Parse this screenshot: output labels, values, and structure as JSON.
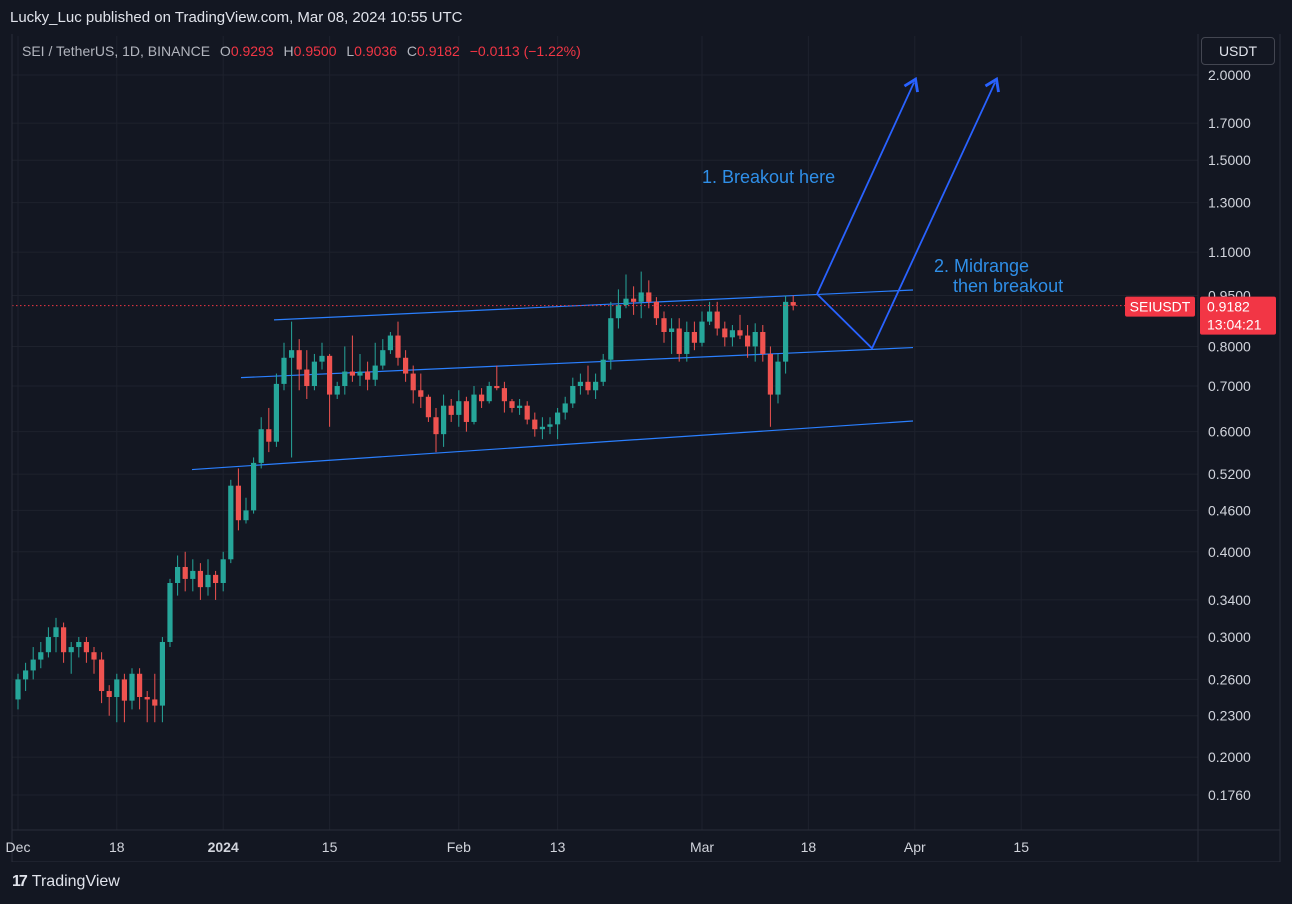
{
  "header": {
    "publisher_line": "Lucky_Luc published on TradingView.com, Mar 08, 2024 10:55 UTC"
  },
  "legend": {
    "symbol": "SEI / TetherUS, 1D, BINANCE",
    "open_label": "O",
    "open": "0.9293",
    "high_label": "H",
    "high": "0.9500",
    "low_label": "L",
    "low": "0.9036",
    "close_label": "C",
    "close": "0.9182",
    "change": "−0.0113 (−1.22%)"
  },
  "currency_button": "USDT",
  "footer": {
    "brand": "TradingView",
    "brand_mark": "17"
  },
  "colors": {
    "up": "#26a69a",
    "down": "#ef5350",
    "channel": "#2a7fff",
    "arrows": "#2962ff",
    "annotation_text": "#2f8fe8",
    "price_tag": "#f23645"
  },
  "chart_data": {
    "type": "candlestick",
    "scale": "log",
    "grid": true,
    "y_ticks": [
      "2.0000",
      "1.7000",
      "1.5000",
      "1.3000",
      "1.1000",
      "0.9500",
      "0.8000",
      "0.7000",
      "0.6000",
      "0.5200",
      "0.4600",
      "0.4000",
      "0.3400",
      "0.3000",
      "0.2600",
      "0.2300",
      "0.2000",
      "0.1760"
    ],
    "x_ticks": [
      "Dec",
      "18",
      "2024",
      "15",
      "Feb",
      "13",
      "Mar",
      "18",
      "Apr",
      "15"
    ],
    "start_date": "2023-12-05",
    "x_tick_days": [
      0,
      13,
      27,
      41,
      58,
      71,
      90,
      104,
      118,
      132
    ],
    "price_tag": {
      "symbol": "SEIUSDT",
      "price": "0.9182",
      "countdown": "13:04:21"
    },
    "annotations": [
      "1. Breakout here",
      "2. Midrange",
      "then breakout"
    ],
    "candles": [
      [
        0.243,
        0.265,
        0.235,
        0.26
      ],
      [
        0.26,
        0.275,
        0.25,
        0.268
      ],
      [
        0.268,
        0.29,
        0.26,
        0.278
      ],
      [
        0.278,
        0.295,
        0.27,
        0.285
      ],
      [
        0.285,
        0.31,
        0.28,
        0.3
      ],
      [
        0.3,
        0.32,
        0.285,
        0.31
      ],
      [
        0.31,
        0.315,
        0.275,
        0.285
      ],
      [
        0.285,
        0.295,
        0.265,
        0.29
      ],
      [
        0.29,
        0.3,
        0.28,
        0.295
      ],
      [
        0.295,
        0.3,
        0.275,
        0.285
      ],
      [
        0.285,
        0.29,
        0.265,
        0.278
      ],
      [
        0.278,
        0.285,
        0.24,
        0.25
      ],
      [
        0.25,
        0.255,
        0.23,
        0.245
      ],
      [
        0.245,
        0.265,
        0.225,
        0.26
      ],
      [
        0.26,
        0.265,
        0.225,
        0.242
      ],
      [
        0.242,
        0.27,
        0.235,
        0.265
      ],
      [
        0.265,
        0.27,
        0.235,
        0.245
      ],
      [
        0.245,
        0.25,
        0.225,
        0.243
      ],
      [
        0.243,
        0.265,
        0.225,
        0.238
      ],
      [
        0.238,
        0.3,
        0.225,
        0.295
      ],
      [
        0.295,
        0.365,
        0.29,
        0.36
      ],
      [
        0.36,
        0.395,
        0.345,
        0.38
      ],
      [
        0.38,
        0.4,
        0.35,
        0.365
      ],
      [
        0.365,
        0.39,
        0.35,
        0.375
      ],
      [
        0.375,
        0.385,
        0.34,
        0.355
      ],
      [
        0.355,
        0.39,
        0.345,
        0.37
      ],
      [
        0.37,
        0.375,
        0.34,
        0.36
      ],
      [
        0.36,
        0.4,
        0.35,
        0.39
      ],
      [
        0.39,
        0.51,
        0.385,
        0.5
      ],
      [
        0.5,
        0.53,
        0.43,
        0.445
      ],
      [
        0.445,
        0.48,
        0.44,
        0.46
      ],
      [
        0.46,
        0.55,
        0.455,
        0.54
      ],
      [
        0.54,
        0.63,
        0.53,
        0.605
      ],
      [
        0.605,
        0.65,
        0.56,
        0.58
      ],
      [
        0.58,
        0.73,
        0.57,
        0.705
      ],
      [
        0.705,
        0.81,
        0.69,
        0.77
      ],
      [
        0.77,
        0.87,
        0.55,
        0.79
      ],
      [
        0.79,
        0.82,
        0.69,
        0.74
      ],
      [
        0.74,
        0.79,
        0.67,
        0.7
      ],
      [
        0.7,
        0.78,
        0.69,
        0.76
      ],
      [
        0.76,
        0.81,
        0.74,
        0.775
      ],
      [
        0.775,
        0.78,
        0.61,
        0.68
      ],
      [
        0.68,
        0.71,
        0.67,
        0.7
      ],
      [
        0.7,
        0.8,
        0.68,
        0.735
      ],
      [
        0.735,
        0.83,
        0.71,
        0.725
      ],
      [
        0.725,
        0.78,
        0.7,
        0.735
      ],
      [
        0.735,
        0.76,
        0.69,
        0.715
      ],
      [
        0.715,
        0.81,
        0.7,
        0.75
      ],
      [
        0.75,
        0.82,
        0.74,
        0.79
      ],
      [
        0.79,
        0.84,
        0.78,
        0.83
      ],
      [
        0.83,
        0.87,
        0.75,
        0.77
      ],
      [
        0.77,
        0.79,
        0.71,
        0.73
      ],
      [
        0.73,
        0.75,
        0.66,
        0.69
      ],
      [
        0.69,
        0.73,
        0.65,
        0.675
      ],
      [
        0.675,
        0.68,
        0.62,
        0.63
      ],
      [
        0.63,
        0.65,
        0.56,
        0.595
      ],
      [
        0.595,
        0.68,
        0.57,
        0.655
      ],
      [
        0.655,
        0.67,
        0.62,
        0.635
      ],
      [
        0.635,
        0.69,
        0.61,
        0.665
      ],
      [
        0.665,
        0.675,
        0.6,
        0.62
      ],
      [
        0.62,
        0.7,
        0.615,
        0.68
      ],
      [
        0.68,
        0.695,
        0.65,
        0.665
      ],
      [
        0.665,
        0.71,
        0.66,
        0.7
      ],
      [
        0.7,
        0.75,
        0.69,
        0.695
      ],
      [
        0.695,
        0.71,
        0.64,
        0.665
      ],
      [
        0.665,
        0.67,
        0.64,
        0.65
      ],
      [
        0.65,
        0.67,
        0.635,
        0.655
      ],
      [
        0.655,
        0.665,
        0.615,
        0.625
      ],
      [
        0.625,
        0.64,
        0.59,
        0.605
      ],
      [
        0.605,
        0.63,
        0.585,
        0.61
      ],
      [
        0.61,
        0.63,
        0.595,
        0.615
      ],
      [
        0.615,
        0.65,
        0.585,
        0.64
      ],
      [
        0.64,
        0.675,
        0.625,
        0.66
      ],
      [
        0.66,
        0.72,
        0.65,
        0.7
      ],
      [
        0.7,
        0.73,
        0.68,
        0.71
      ],
      [
        0.71,
        0.75,
        0.68,
        0.69
      ],
      [
        0.69,
        0.73,
        0.67,
        0.71
      ],
      [
        0.71,
        0.78,
        0.7,
        0.765
      ],
      [
        0.765,
        0.93,
        0.74,
        0.88
      ],
      [
        0.88,
        0.97,
        0.85,
        0.92
      ],
      [
        0.92,
        1.02,
        0.91,
        0.94
      ],
      [
        0.94,
        0.98,
        0.89,
        0.93
      ],
      [
        0.93,
        1.03,
        0.88,
        0.96
      ],
      [
        0.96,
        1.0,
        0.91,
        0.93
      ],
      [
        0.93,
        0.945,
        0.86,
        0.88
      ],
      [
        0.88,
        0.9,
        0.81,
        0.84
      ],
      [
        0.84,
        0.88,
        0.78,
        0.85
      ],
      [
        0.85,
        0.88,
        0.76,
        0.78
      ],
      [
        0.78,
        0.87,
        0.76,
        0.84
      ],
      [
        0.84,
        0.87,
        0.79,
        0.81
      ],
      [
        0.81,
        0.9,
        0.8,
        0.87
      ],
      [
        0.87,
        0.93,
        0.86,
        0.9
      ],
      [
        0.9,
        0.93,
        0.83,
        0.85
      ],
      [
        0.85,
        0.87,
        0.8,
        0.825
      ],
      [
        0.825,
        0.86,
        0.8,
        0.845
      ],
      [
        0.845,
        0.89,
        0.82,
        0.83
      ],
      [
        0.83,
        0.86,
        0.77,
        0.8
      ],
      [
        0.8,
        0.865,
        0.76,
        0.84
      ],
      [
        0.84,
        0.86,
        0.76,
        0.78
      ],
      [
        0.78,
        0.8,
        0.61,
        0.68
      ],
      [
        0.68,
        0.78,
        0.66,
        0.76
      ],
      [
        0.76,
        0.95,
        0.73,
        0.93
      ],
      [
        0.9293,
        0.95,
        0.9036,
        0.9182
      ]
    ]
  }
}
